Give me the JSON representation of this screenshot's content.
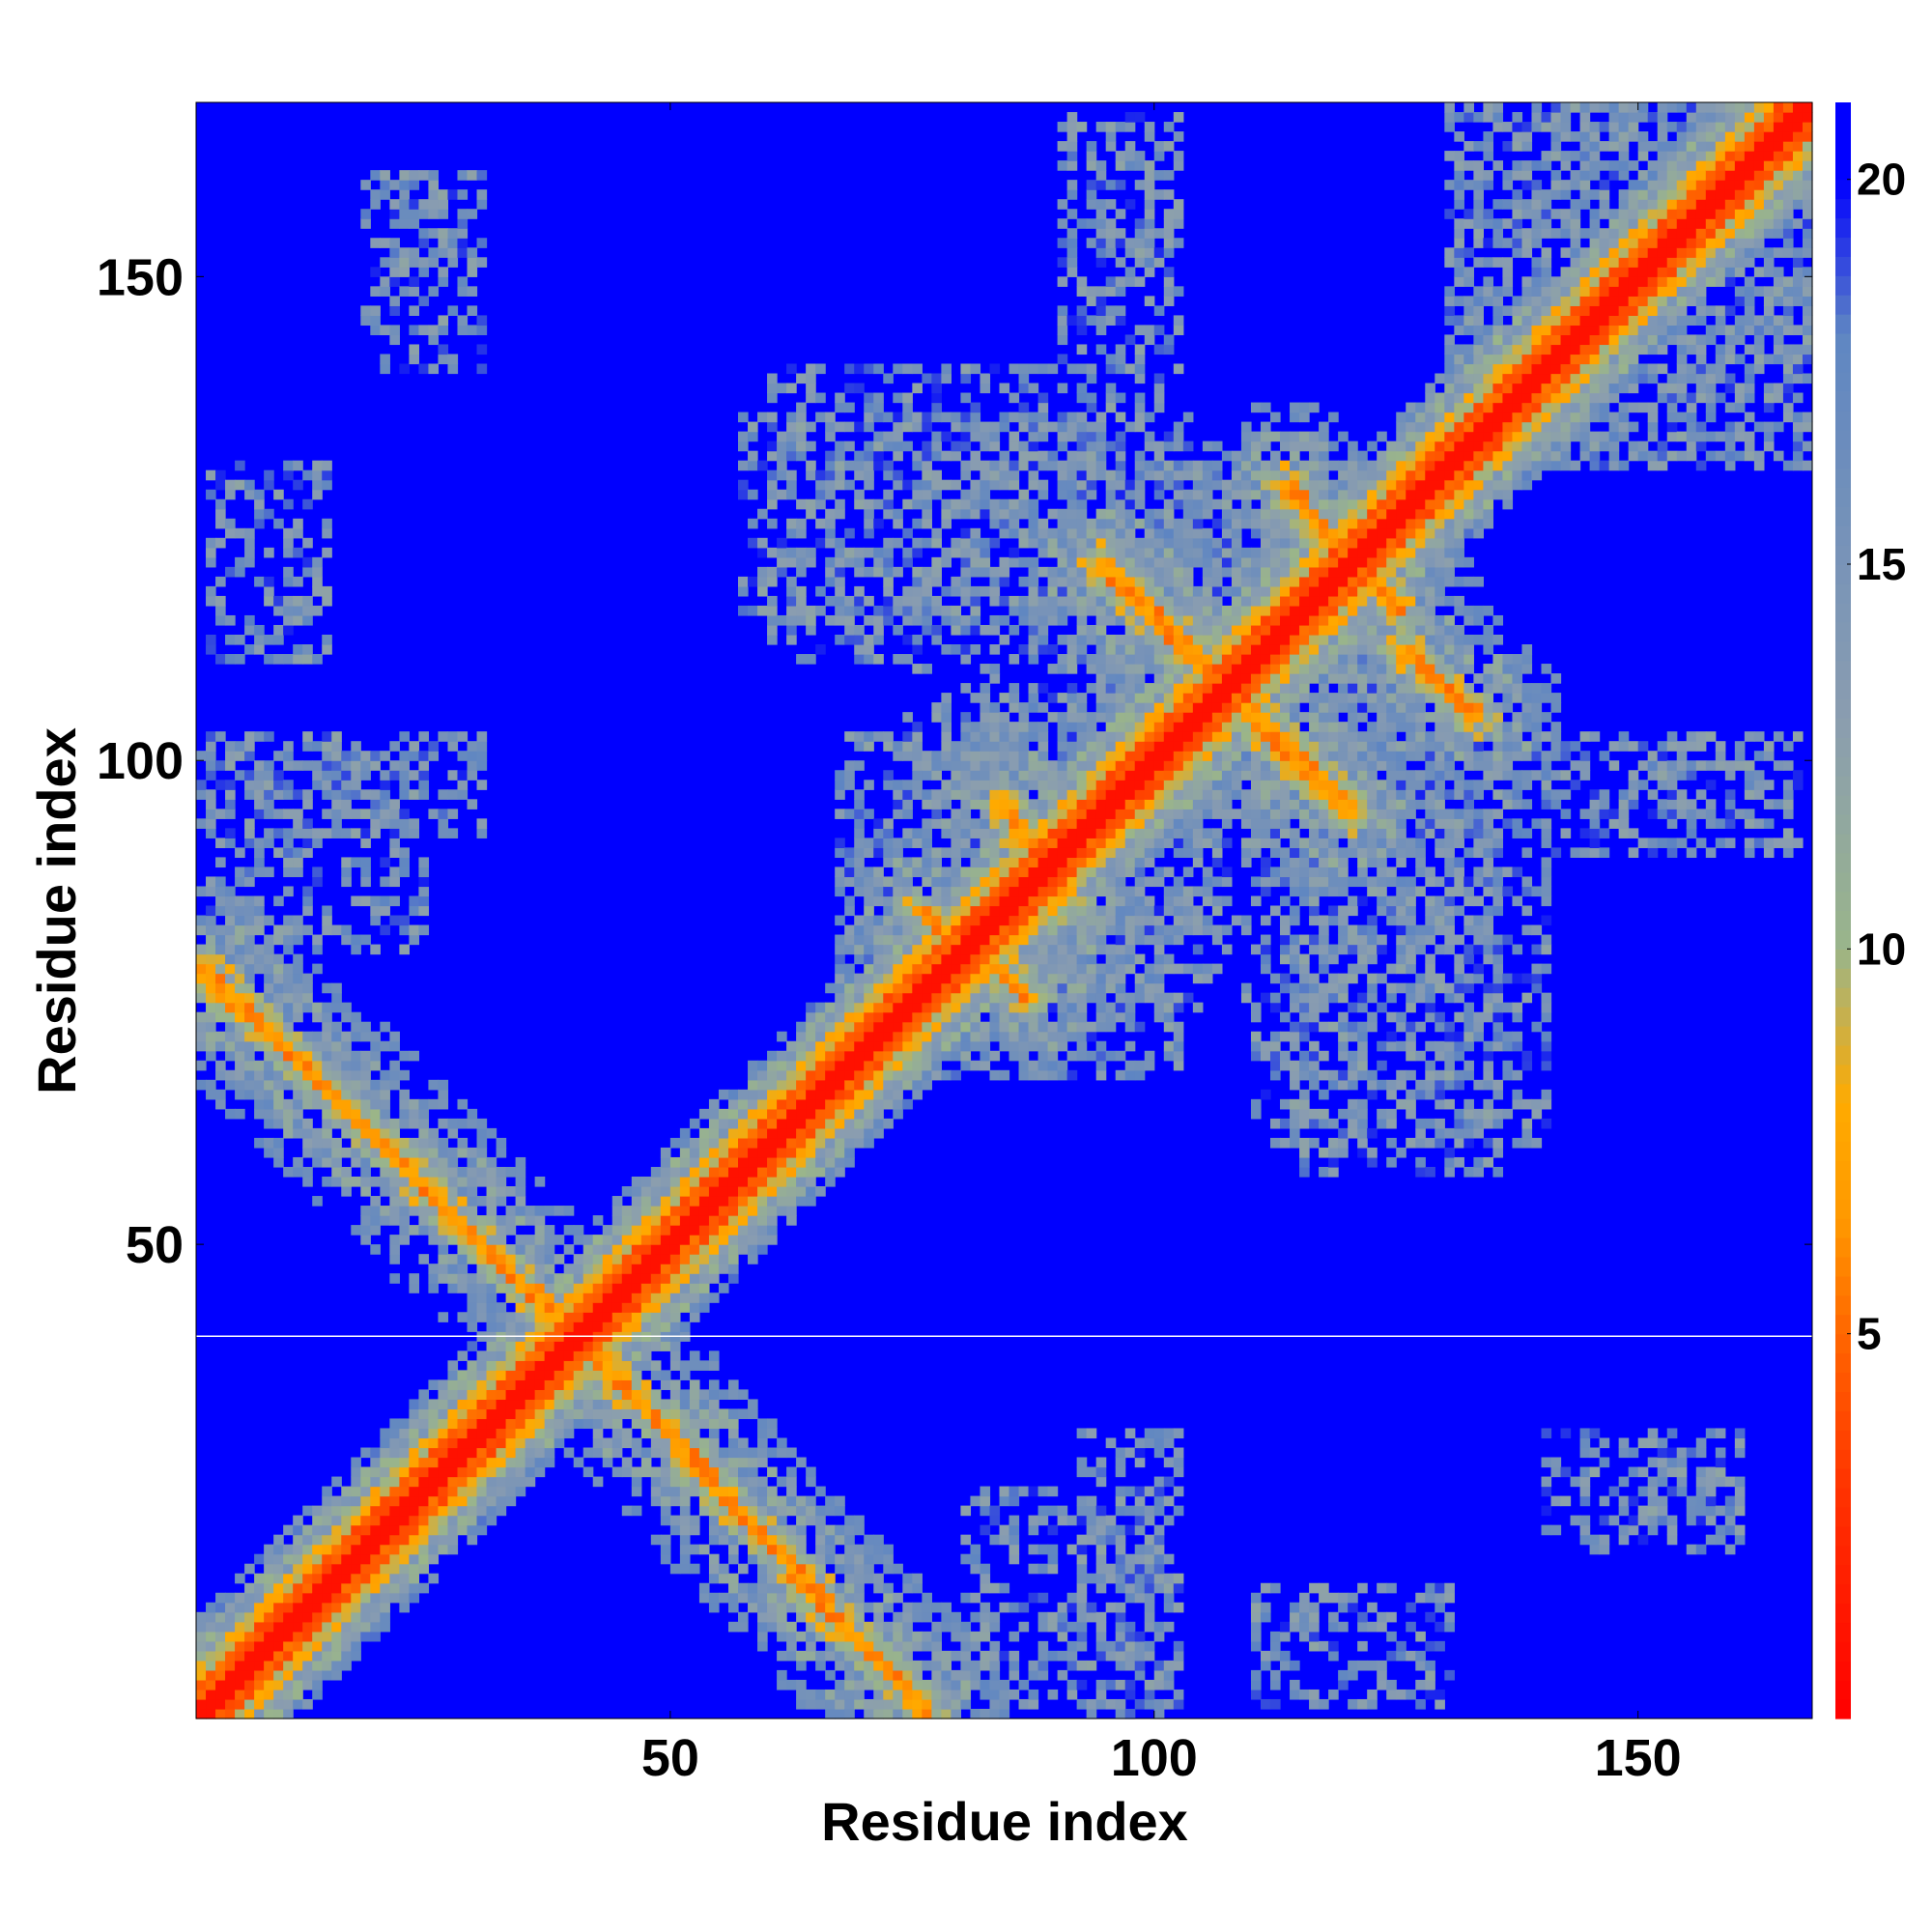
{
  "chart_data": {
    "type": "heatmap",
    "title": "",
    "xlabel": "Residue index",
    "ylabel": "Residue index",
    "n_residues": 167,
    "xlim": [
      1,
      168
    ],
    "ylim": [
      1,
      168
    ],
    "x_ticks": [
      50,
      100,
      150
    ],
    "y_ticks": [
      50,
      100,
      150
    ],
    "x_tick_labels": [
      "50",
      "100",
      "150"
    ],
    "y_tick_labels": [
      "50",
      "100",
      "150"
    ],
    "value_range": [
      0,
      21
    ],
    "colorbar": {
      "ticks": [
        5,
        10,
        15,
        20
      ],
      "tick_labels": [
        "5",
        "10",
        "15",
        "20"
      ],
      "palette": [
        "#ff0000",
        "#ff3300",
        "#ff6600",
        "#ff9900",
        "#ffaa00",
        "#9ab58a",
        "#8a9db0",
        "#5f86c2",
        "#0000ff"
      ],
      "stops": [
        0,
        3,
        5,
        6.5,
        8,
        10,
        13,
        18,
        20
      ]
    },
    "separator_residue": 40,
    "diagonal": {
      "from": [
        1,
        1
      ],
      "to": [
        167,
        167
      ]
    },
    "beta_sheet_contacts": [
      {
        "from": [
          1,
          78
        ],
        "to": [
          40,
          40
        ]
      },
      {
        "from": [
          40,
          40
        ],
        "to": [
          76,
          1
        ]
      },
      {
        "from": [
          75,
          84
        ],
        "to": [
          87,
          75
        ]
      },
      {
        "from": [
          84,
          95
        ],
        "to": [
          90,
          85
        ]
      },
      {
        "from": [
          94,
          120
        ],
        "to": [
          106,
          108
        ]
      },
      {
        "from": [
          108,
          106
        ],
        "to": [
          120,
          94
        ]
      },
      {
        "from": [
          113,
          128
        ],
        "to": [
          125,
          115
        ]
      },
      {
        "from": [
          125,
          111
        ],
        "to": [
          133,
          104
        ]
      }
    ],
    "contact_regions": [
      {
        "x": [
          67,
          110
        ],
        "y": [
          74,
          102
        ]
      },
      {
        "x": [
          90,
          130
        ],
        "y": [
          100,
          128
        ]
      },
      {
        "x": [
          110,
          140
        ],
        "y": [
          60,
          100
        ]
      },
      {
        "x": [
          130,
          167
        ],
        "y": [
          130,
          167
        ]
      },
      {
        "x": [
          57,
          103
        ],
        "y": [
          114,
          135
        ]
      },
      {
        "x": [
          1,
          30
        ],
        "y": [
          92,
          102
        ]
      },
      {
        "x": [
          90,
          102
        ],
        "y": [
          140,
          166
        ]
      },
      {
        "x": [
          150,
          162
        ],
        "y": [
          94,
          101
        ]
      },
      {
        "x": [
          80,
          100
        ],
        "y": [
          2,
          24
        ]
      },
      {
        "x": [
          110,
          130
        ],
        "y": [
          2,
          14
        ]
      },
      {
        "x": [
          140,
          160
        ],
        "y": [
          18,
          30
        ]
      },
      {
        "x": [
          20,
          30
        ],
        "y": [
          150,
          160
        ]
      }
    ]
  }
}
